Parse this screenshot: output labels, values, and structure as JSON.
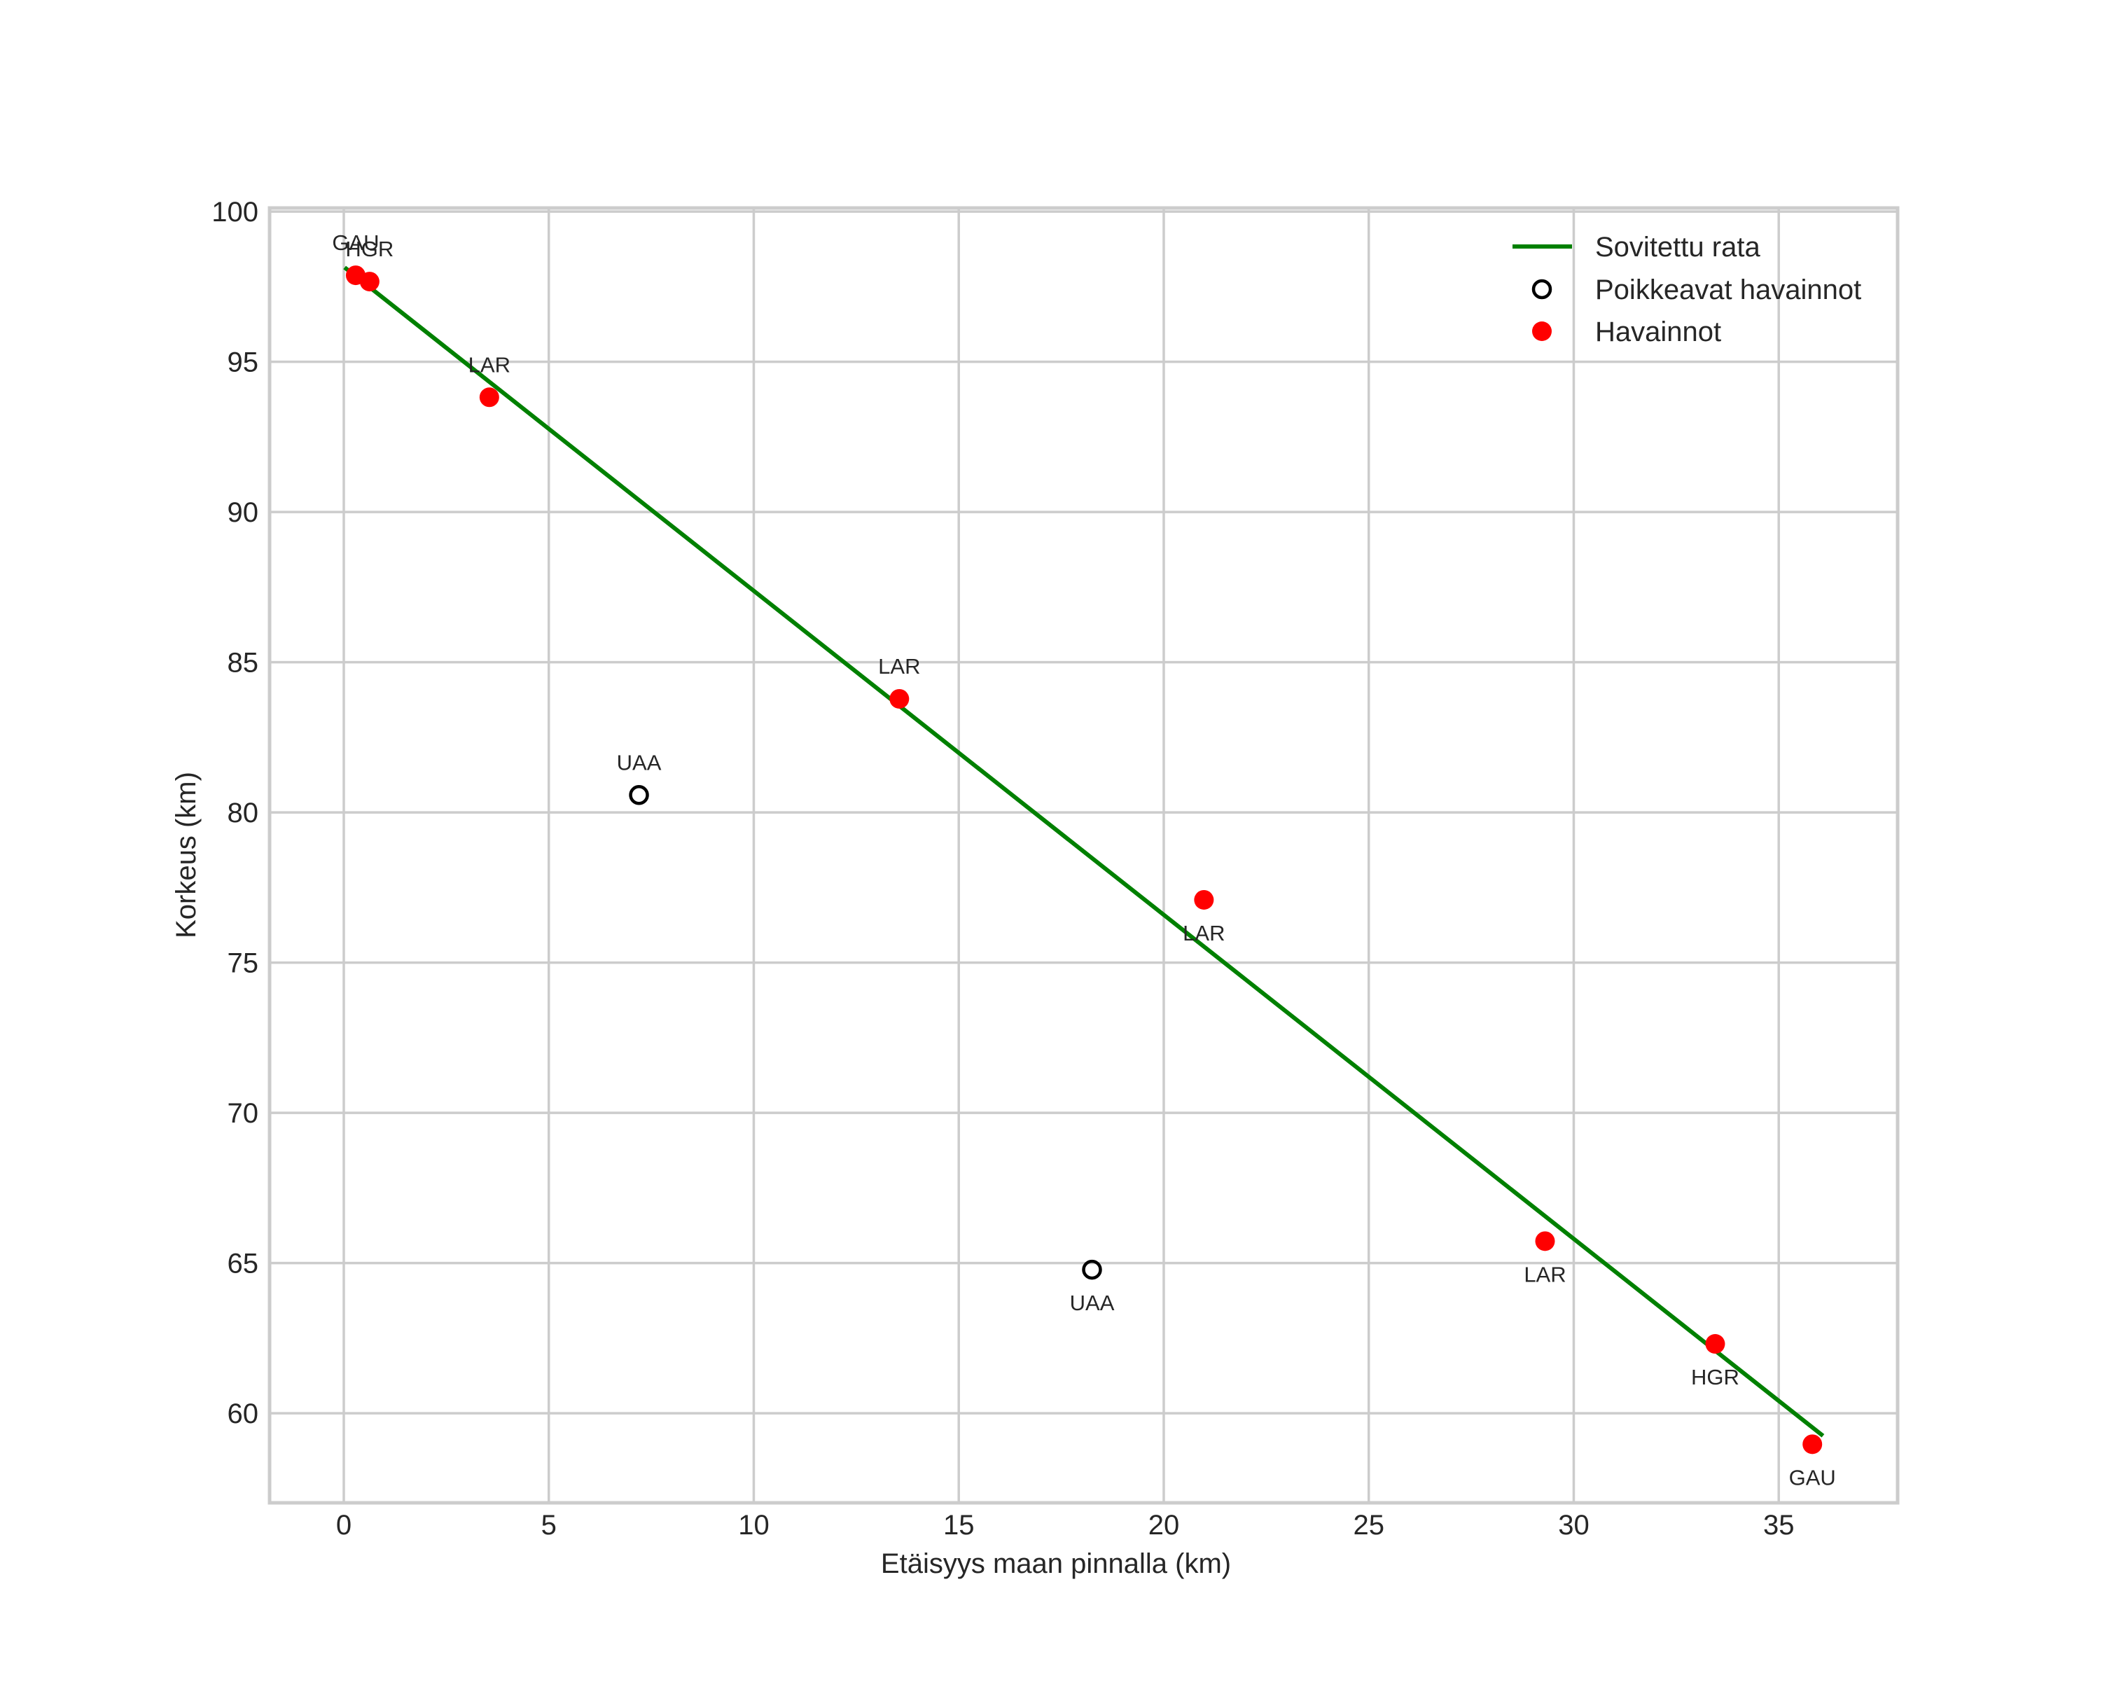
{
  "chart_data": {
    "type": "scatter",
    "title": "",
    "xlabel": "Etäisyys maan pinnalla (km)",
    "ylabel": "Korkeus (km)",
    "xlim": [
      -1.81,
      37.9
    ],
    "ylim": [
      57.02,
      100.12
    ],
    "xticks": [
      0,
      5,
      10,
      15,
      20,
      25,
      30,
      35
    ],
    "yticks": [
      60,
      65,
      70,
      75,
      80,
      85,
      90,
      95,
      100
    ],
    "grid": true,
    "legend_position": "upper right",
    "series": [
      {
        "name": "Sovitettu rata",
        "kind": "line",
        "color": "#008000",
        "x": [
          0.02,
          36.08
        ],
        "y": [
          98.14,
          59.25
        ]
      },
      {
        "name": "Poikkeavat havainnot",
        "kind": "scatter",
        "marker": "open-circle",
        "color": "#000000",
        "points": [
          {
            "x": 7.2,
            "y": 80.58,
            "label": "UAA",
            "label_pos": "above"
          },
          {
            "x": 18.25,
            "y": 64.78,
            "label": "UAA",
            "label_pos": "below"
          }
        ]
      },
      {
        "name": "Havainnot",
        "kind": "scatter",
        "marker": "filled-circle",
        "color": "#ff0000",
        "points": [
          {
            "x": 0.29,
            "y": 97.88,
            "label": "GAU",
            "label_pos": "above"
          },
          {
            "x": 0.63,
            "y": 97.67,
            "label": "HGR",
            "label_pos": "above"
          },
          {
            "x": 3.55,
            "y": 93.82,
            "label": "LAR",
            "label_pos": "above"
          },
          {
            "x": 13.55,
            "y": 83.78,
            "label": "LAR",
            "label_pos": "above"
          },
          {
            "x": 20.98,
            "y": 77.09,
            "label": "LAR",
            "label_pos": "below"
          },
          {
            "x": 29.3,
            "y": 65.73,
            "label": "LAR",
            "label_pos": "below"
          },
          {
            "x": 33.45,
            "y": 62.31,
            "label": "HGR",
            "label_pos": "below"
          },
          {
            "x": 35.82,
            "y": 58.97,
            "label": "GAU",
            "label_pos": "below"
          }
        ]
      }
    ]
  },
  "legend": {
    "items": [
      {
        "label": "Sovitettu rata",
        "icon": "green-line"
      },
      {
        "label": "Poikkeavat havainnot",
        "icon": "open-circle"
      },
      {
        "label": "Havainnot",
        "icon": "red-dot"
      }
    ]
  },
  "colors": {
    "grid": "#cccccc",
    "frame": "#cccccc",
    "fit_line": "#008000",
    "observation": "#ff0000",
    "outlier": "#000000",
    "text": "#262626"
  }
}
